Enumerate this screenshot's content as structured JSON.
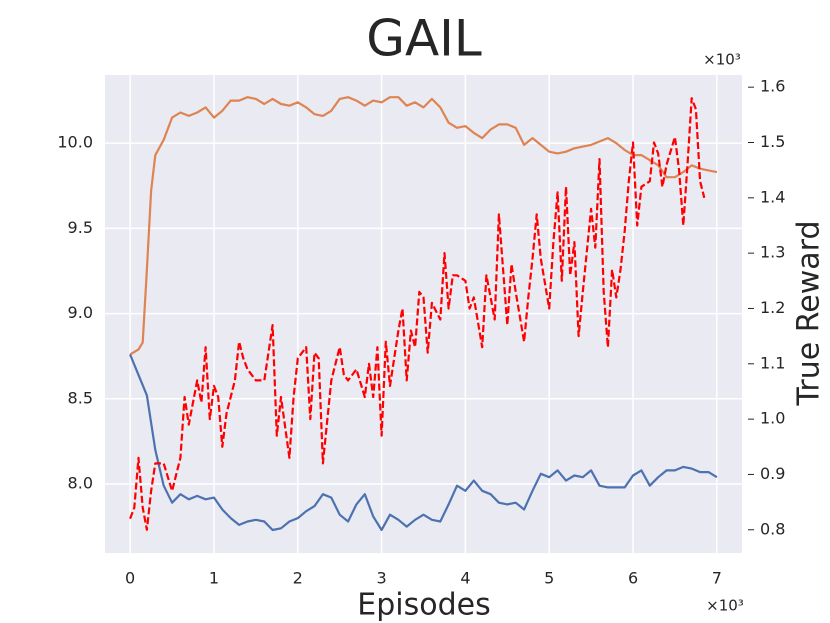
{
  "chart_data": {
    "type": "line",
    "title": "GAIL",
    "x_label": "Episodes",
    "y2_label": "True Reward",
    "x_offset_label": "×10³",
    "y2_offset_label": "×10³",
    "xlim": [
      -0.3,
      7.3
    ],
    "xticks": [
      0,
      1,
      2,
      3,
      4,
      5,
      6,
      7
    ],
    "ylim": [
      7.595,
      10.4
    ],
    "yticks": [
      {
        "value": 8,
        "label": "8.0"
      },
      8.5,
      {
        "value": 9,
        "label": "9.0"
      },
      9.5,
      {
        "value": 10,
        "label": "10.0"
      }
    ],
    "y2lim": [
      0.758,
      1.622
    ],
    "y2ticks": [
      0.8,
      0.9,
      {
        "value": 1,
        "label": "1.0"
      },
      1.1,
      1.2,
      1.3,
      1.4,
      1.5,
      1.6
    ],
    "grid": true,
    "background": "#eaeaf2",
    "series": [
      {
        "color": "#dd8452",
        "dashed": false,
        "x": [
          0,
          0.1,
          0.15,
          0.2,
          0.25,
          0.3,
          0.4,
          0.5,
          0.6,
          0.7,
          0.8,
          0.9,
          1.0,
          1.1,
          1.2,
          1.3,
          1.4,
          1.5,
          1.6,
          1.7,
          1.8,
          1.9,
          2.0,
          2.1,
          2.2,
          2.3,
          2.4,
          2.5,
          2.6,
          2.7,
          2.8,
          2.9,
          3.0,
          3.1,
          3.2,
          3.3,
          3.4,
          3.5,
          3.6,
          3.7,
          3.8,
          3.9,
          4.0,
          4.1,
          4.2,
          4.3,
          4.4,
          4.5,
          4.6,
          4.7,
          4.8,
          4.9,
          5.0,
          5.1,
          5.2,
          5.3,
          5.4,
          5.5,
          5.6,
          5.7,
          5.8,
          5.9,
          6.0,
          6.1,
          6.2,
          6.3,
          6.4,
          6.5,
          6.6,
          6.7,
          6.8,
          6.9,
          7.0
        ],
        "values": [
          8.76,
          8.79,
          8.83,
          9.26,
          9.72,
          9.93,
          10.02,
          10.15,
          10.18,
          10.16,
          10.18,
          10.21,
          10.15,
          10.19,
          10.25,
          10.25,
          10.27,
          10.26,
          10.23,
          10.26,
          10.23,
          10.22,
          10.24,
          10.21,
          10.17,
          10.16,
          10.19,
          10.26,
          10.27,
          10.25,
          10.22,
          10.25,
          10.24,
          10.27,
          10.27,
          10.22,
          10.24,
          10.21,
          10.26,
          10.21,
          10.12,
          10.09,
          10.1,
          10.06,
          10.03,
          10.08,
          10.11,
          10.11,
          10.09,
          9.99,
          10.03,
          9.99,
          9.95,
          9.94,
          9.95,
          9.97,
          9.98,
          9.99,
          10.01,
          10.03,
          10.0,
          9.96,
          9.93,
          9.93,
          9.9,
          9.87,
          9.8,
          9.8,
          9.83,
          9.87,
          9.85,
          9.84,
          9.83
        ]
      },
      {
        "color": "#4c72b0",
        "dashed": false,
        "x": [
          0,
          0.1,
          0.2,
          0.3,
          0.4,
          0.5,
          0.6,
          0.7,
          0.8,
          0.9,
          1.0,
          1.1,
          1.2,
          1.3,
          1.4,
          1.5,
          1.6,
          1.7,
          1.8,
          1.9,
          2.0,
          2.1,
          2.2,
          2.3,
          2.4,
          2.5,
          2.6,
          2.7,
          2.8,
          2.9,
          3.0,
          3.1,
          3.2,
          3.3,
          3.4,
          3.5,
          3.6,
          3.7,
          3.8,
          3.9,
          4.0,
          4.1,
          4.2,
          4.3,
          4.4,
          4.5,
          4.6,
          4.7,
          4.8,
          4.9,
          5.0,
          5.1,
          5.2,
          5.3,
          5.4,
          5.5,
          5.6,
          5.7,
          5.8,
          5.9,
          6.0,
          6.1,
          6.2,
          6.3,
          6.4,
          6.5,
          6.6,
          6.7,
          6.8,
          6.9,
          7.0
        ],
        "values": [
          8.76,
          8.64,
          8.52,
          8.2,
          7.99,
          7.89,
          7.94,
          7.91,
          7.93,
          7.91,
          7.92,
          7.85,
          7.8,
          7.76,
          7.78,
          7.79,
          7.78,
          7.73,
          7.74,
          7.78,
          7.8,
          7.84,
          7.87,
          7.94,
          7.92,
          7.82,
          7.78,
          7.88,
          7.94,
          7.81,
          7.73,
          7.82,
          7.79,
          7.75,
          7.79,
          7.82,
          7.79,
          7.78,
          7.88,
          7.99,
          7.96,
          8.02,
          7.96,
          7.94,
          7.89,
          7.88,
          7.89,
          7.85,
          7.96,
          8.06,
          8.04,
          8.08,
          8.02,
          8.05,
          8.04,
          8.08,
          7.99,
          7.98,
          7.98,
          7.98,
          8.05,
          8.08,
          7.99,
          8.04,
          8.08,
          8.08,
          8.1,
          8.09,
          8.07,
          8.07,
          8.04
        ]
      },
      {
        "color": "#ff0000",
        "dashed": true,
        "axis": "y2",
        "x": [
          0,
          0.05,
          0.1,
          0.15,
          0.2,
          0.25,
          0.3,
          0.4,
          0.5,
          0.6,
          0.65,
          0.7,
          0.8,
          0.85,
          0.9,
          0.95,
          1.0,
          1.05,
          1.1,
          1.15,
          1.2,
          1.25,
          1.3,
          1.35,
          1.4,
          1.5,
          1.6,
          1.7,
          1.75,
          1.8,
          1.9,
          1.95,
          2.0,
          2.1,
          2.15,
          2.2,
          2.25,
          2.3,
          2.4,
          2.5,
          2.55,
          2.6,
          2.7,
          2.8,
          2.85,
          2.9,
          2.95,
          3.0,
          3.05,
          3.1,
          3.2,
          3.25,
          3.3,
          3.35,
          3.4,
          3.45,
          3.5,
          3.55,
          3.6,
          3.7,
          3.75,
          3.8,
          3.85,
          3.9,
          4.0,
          4.05,
          4.1,
          4.2,
          4.25,
          4.3,
          4.35,
          4.4,
          4.45,
          4.5,
          4.55,
          4.6,
          4.7,
          4.75,
          4.8,
          4.85,
          4.9,
          5.0,
          5.05,
          5.1,
          5.15,
          5.2,
          5.25,
          5.3,
          5.35,
          5.4,
          5.5,
          5.55,
          5.6,
          5.65,
          5.7,
          5.75,
          5.8,
          5.85,
          5.9,
          5.95,
          6.0,
          6.05,
          6.1,
          6.2,
          6.25,
          6.3,
          6.35,
          6.4,
          6.5,
          6.55,
          6.6,
          6.65,
          6.7,
          6.75,
          6.8,
          6.85
        ],
        "values": [
          0.82,
          0.84,
          0.93,
          0.84,
          0.8,
          0.87,
          0.92,
          0.92,
          0.87,
          0.93,
          1.04,
          0.99,
          1.07,
          1.03,
          1.13,
          1.0,
          1.06,
          1.04,
          0.95,
          1.01,
          1.04,
          1.07,
          1.14,
          1.11,
          1.09,
          1.07,
          1.07,
          1.17,
          0.97,
          1.04,
          0.93,
          1.04,
          1.11,
          1.13,
          1.0,
          1.12,
          1.11,
          0.92,
          1.07,
          1.13,
          1.08,
          1.07,
          1.09,
          1.04,
          1.1,
          1.04,
          1.13,
          0.97,
          1.14,
          1.06,
          1.16,
          1.2,
          1.07,
          1.16,
          1.13,
          1.23,
          1.22,
          1.12,
          1.21,
          1.18,
          1.3,
          1.2,
          1.26,
          1.26,
          1.25,
          1.2,
          1.22,
          1.13,
          1.26,
          1.22,
          1.18,
          1.37,
          1.27,
          1.17,
          1.28,
          1.23,
          1.14,
          1.22,
          1.29,
          1.37,
          1.29,
          1.2,
          1.32,
          1.41,
          1.25,
          1.42,
          1.26,
          1.32,
          1.15,
          1.23,
          1.38,
          1.31,
          1.47,
          1.23,
          1.13,
          1.27,
          1.22,
          1.27,
          1.34,
          1.43,
          1.5,
          1.35,
          1.42,
          1.43,
          1.5,
          1.48,
          1.42,
          1.46,
          1.51,
          1.45,
          1.35,
          1.46,
          1.58,
          1.56,
          1.43,
          1.4
        ]
      }
    ]
  }
}
